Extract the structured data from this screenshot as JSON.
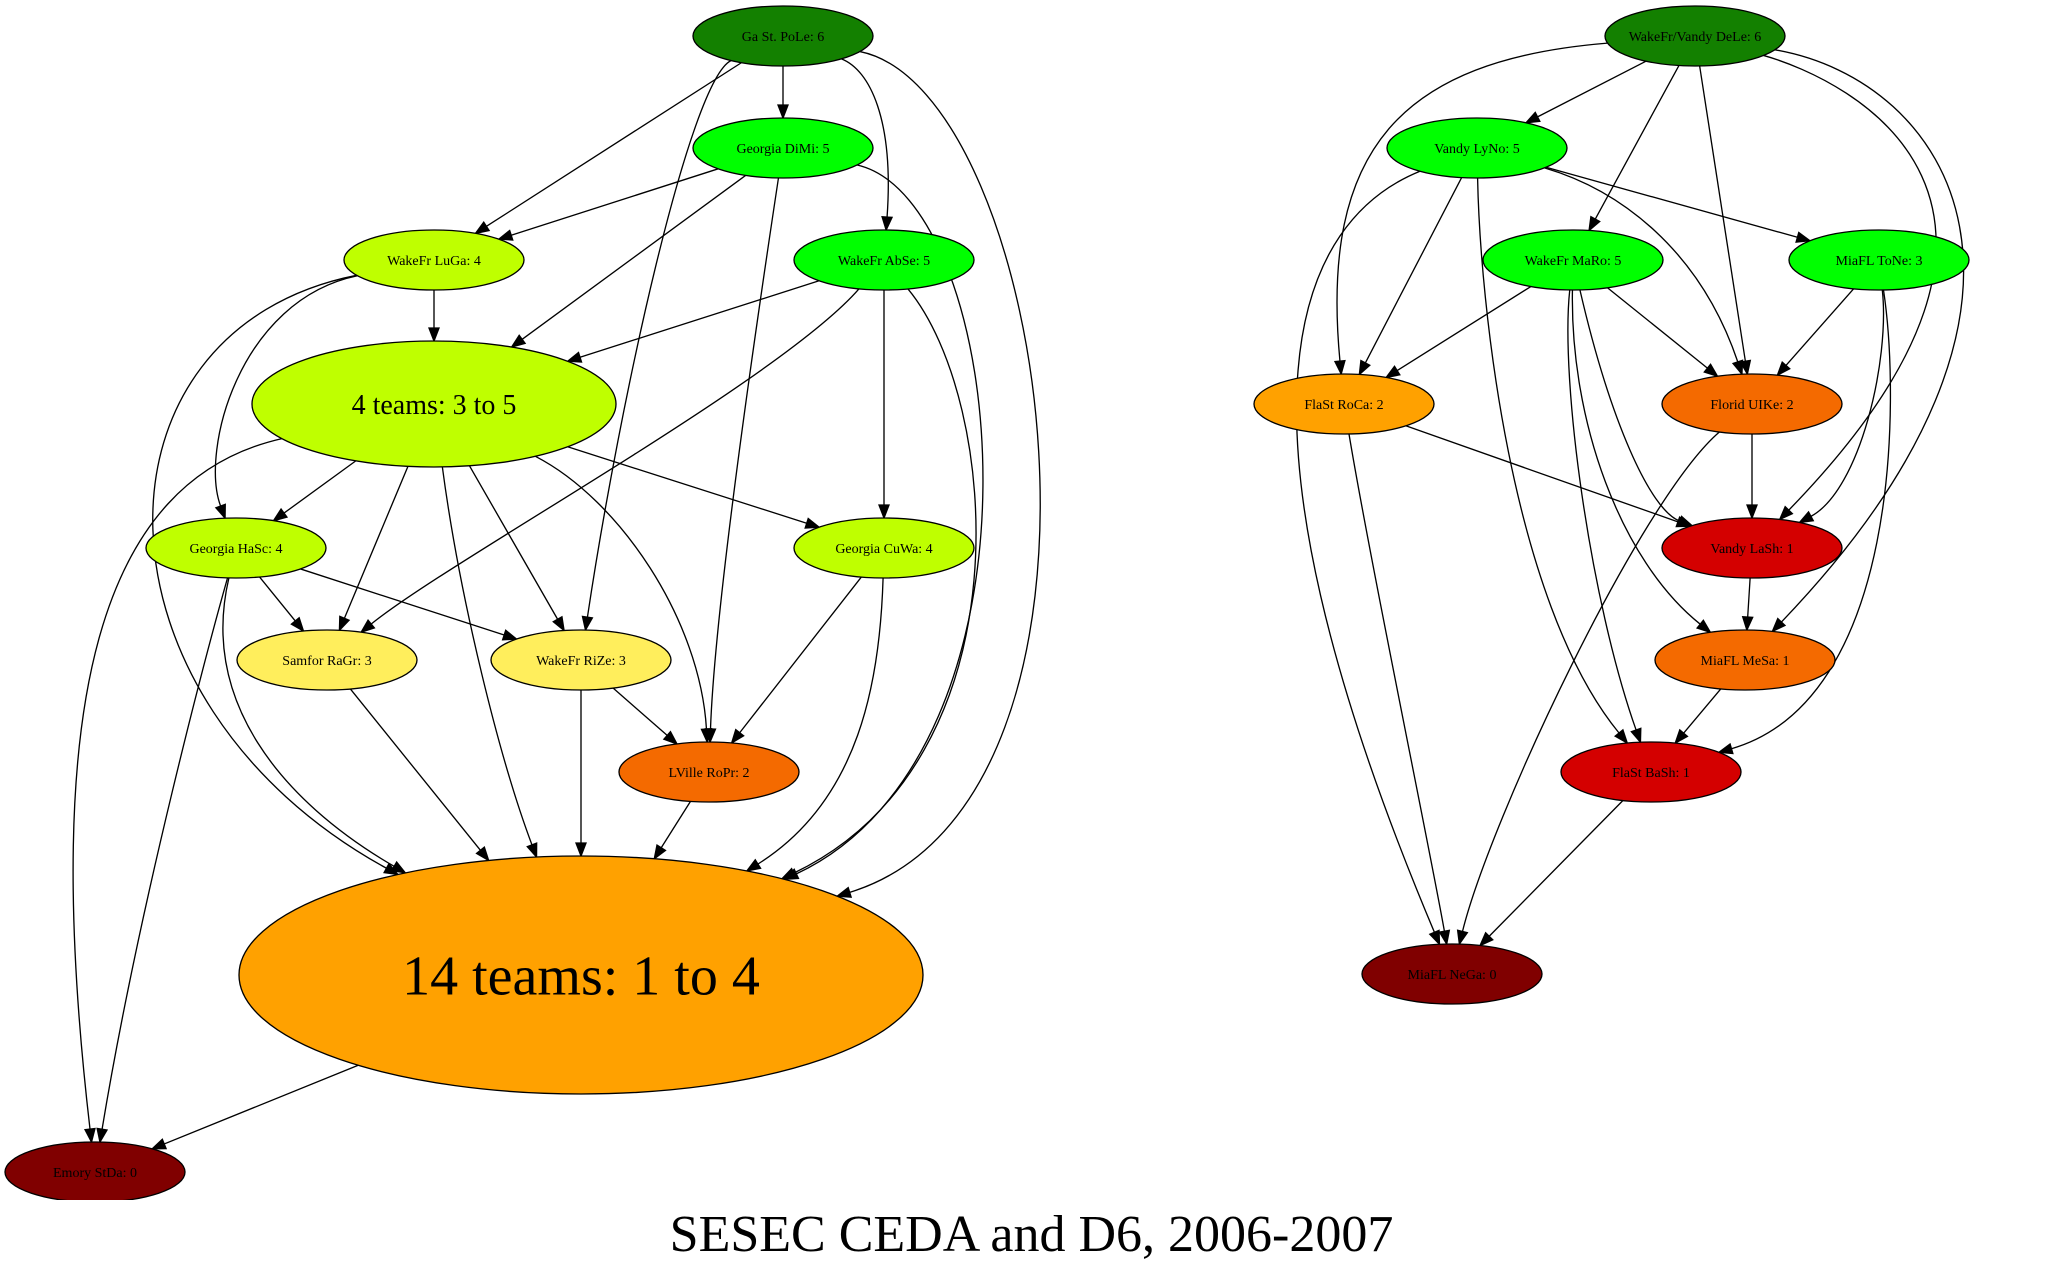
{
  "title": "SESEC CEDA and D6, 2006-2007",
  "colors": {
    "dark_green": "#138000",
    "green": "#00ff00",
    "yellow_green": "#bfff00",
    "yellow": "#ffee5c",
    "orange": "#ffa100",
    "dark_orange": "#f46a00",
    "red": "#d40000",
    "dark_red": "#800000"
  },
  "nodes": [
    {
      "id": "gastpole",
      "label": "Ga St. PoLe: 6",
      "color_key": "dark_green"
    },
    {
      "id": "georgiadimi",
      "label": "Georgia DiMi: 5",
      "color_key": "green"
    },
    {
      "id": "wakefrluga",
      "label": "WakeFr LuGa: 4",
      "color_key": "yellow_green"
    },
    {
      "id": "wakefrabse",
      "label": "WakeFr AbSe: 5",
      "color_key": "green"
    },
    {
      "id": "four_teams",
      "label": "4 teams: 3 to 5",
      "color_key": "yellow_green"
    },
    {
      "id": "georgiahasc",
      "label": "Georgia HaSc: 4",
      "color_key": "yellow_green"
    },
    {
      "id": "georgiacuwa",
      "label": "Georgia CuWa: 4",
      "color_key": "yellow_green"
    },
    {
      "id": "samforragr",
      "label": "Samfor RaGr: 3",
      "color_key": "yellow"
    },
    {
      "id": "wakefrrize",
      "label": "WakeFr RiZe: 3",
      "color_key": "yellow"
    },
    {
      "id": "lvilleropr",
      "label": "LVille RoPr: 2",
      "color_key": "dark_orange"
    },
    {
      "id": "fourteen_teams",
      "label": "14 teams: 1 to 4",
      "color_key": "orange"
    },
    {
      "id": "emorystda",
      "label": "Emory StDa: 0",
      "color_key": "dark_red"
    },
    {
      "id": "wakefrvandydele",
      "label": "WakeFr/Vandy DeLe: 6",
      "color_key": "dark_green"
    },
    {
      "id": "vandylyno",
      "label": "Vandy LyNo: 5",
      "color_key": "green"
    },
    {
      "id": "wakefrmaro",
      "label": "WakeFr MaRo: 5",
      "color_key": "green"
    },
    {
      "id": "miafltone",
      "label": "MiaFL ToNe: 3",
      "color_key": "green"
    },
    {
      "id": "flastroca",
      "label": "FlaSt RoCa: 2",
      "color_key": "orange"
    },
    {
      "id": "floriduike",
      "label": "Florid UIKe: 2",
      "color_key": "dark_orange"
    },
    {
      "id": "vandylash",
      "label": "Vandy LaSh: 1",
      "color_key": "red"
    },
    {
      "id": "miaflmesa",
      "label": "MiaFL MeSa: 1",
      "color_key": "dark_orange"
    },
    {
      "id": "flastbash",
      "label": "FlaSt BaSh: 1",
      "color_key": "red"
    },
    {
      "id": "miaflnega",
      "label": "MiaFL NeGa: 0",
      "color_key": "dark_red"
    }
  ],
  "edges": [
    {
      "from": "gastpole",
      "to": "georgiadimi"
    },
    {
      "from": "gastpole",
      "to": "wakefrluga"
    },
    {
      "from": "gastpole",
      "to": "wakefrabse"
    },
    {
      "from": "gastpole",
      "to": "wakefrrize"
    },
    {
      "from": "gastpole",
      "to": "fourteen_teams"
    },
    {
      "from": "georgiadimi",
      "to": "wakefrluga"
    },
    {
      "from": "georgiadimi",
      "to": "four_teams"
    },
    {
      "from": "georgiadimi",
      "to": "lvilleropr"
    },
    {
      "from": "georgiadimi",
      "to": "fourteen_teams"
    },
    {
      "from": "wakefrluga",
      "to": "four_teams"
    },
    {
      "from": "wakefrluga",
      "to": "georgiahasc"
    },
    {
      "from": "wakefrluga",
      "to": "fourteen_teams"
    },
    {
      "from": "wakefrabse",
      "to": "four_teams"
    },
    {
      "from": "wakefrabse",
      "to": "georgiacuwa"
    },
    {
      "from": "wakefrabse",
      "to": "samforragr"
    },
    {
      "from": "wakefrabse",
      "to": "fourteen_teams"
    },
    {
      "from": "four_teams",
      "to": "georgiahasc"
    },
    {
      "from": "four_teams",
      "to": "georgiacuwa"
    },
    {
      "from": "four_teams",
      "to": "samforragr"
    },
    {
      "from": "four_teams",
      "to": "wakefrrize"
    },
    {
      "from": "four_teams",
      "to": "lvilleropr"
    },
    {
      "from": "four_teams",
      "to": "fourteen_teams"
    },
    {
      "from": "four_teams",
      "to": "emorystda"
    },
    {
      "from": "georgiahasc",
      "to": "samforragr"
    },
    {
      "from": "georgiahasc",
      "to": "wakefrrize"
    },
    {
      "from": "georgiahasc",
      "to": "fourteen_teams"
    },
    {
      "from": "georgiahasc",
      "to": "emorystda"
    },
    {
      "from": "georgiacuwa",
      "to": "lvilleropr"
    },
    {
      "from": "georgiacuwa",
      "to": "fourteen_teams"
    },
    {
      "from": "samforragr",
      "to": "fourteen_teams"
    },
    {
      "from": "wakefrrize",
      "to": "lvilleropr"
    },
    {
      "from": "wakefrrize",
      "to": "fourteen_teams"
    },
    {
      "from": "lvilleropr",
      "to": "fourteen_teams"
    },
    {
      "from": "fourteen_teams",
      "to": "emorystda"
    },
    {
      "from": "wakefrvandydele",
      "to": "vandylyno"
    },
    {
      "from": "wakefrvandydele",
      "to": "wakefrmaro"
    },
    {
      "from": "wakefrvandydele",
      "to": "flastroca"
    },
    {
      "from": "wakefrvandydele",
      "to": "floriduike"
    },
    {
      "from": "wakefrvandydele",
      "to": "vandylash"
    },
    {
      "from": "wakefrvandydele",
      "to": "miaflmesa"
    },
    {
      "from": "vandylyno",
      "to": "miafltone"
    },
    {
      "from": "vandylyno",
      "to": "flastroca"
    },
    {
      "from": "vandylyno",
      "to": "floriduike"
    },
    {
      "from": "vandylyno",
      "to": "flastbash"
    },
    {
      "from": "vandylyno",
      "to": "miaflnega"
    },
    {
      "from": "wakefrmaro",
      "to": "flastroca"
    },
    {
      "from": "wakefrmaro",
      "to": "floriduike"
    },
    {
      "from": "wakefrmaro",
      "to": "vandylash"
    },
    {
      "from": "wakefrmaro",
      "to": "miaflmesa"
    },
    {
      "from": "wakefrmaro",
      "to": "flastbash"
    },
    {
      "from": "miafltone",
      "to": "floriduike"
    },
    {
      "from": "miafltone",
      "to": "vandylash"
    },
    {
      "from": "miafltone",
      "to": "flastbash"
    },
    {
      "from": "flastroca",
      "to": "vandylash"
    },
    {
      "from": "flastroca",
      "to": "miaflnega"
    },
    {
      "from": "floriduike",
      "to": "vandylash"
    },
    {
      "from": "floriduike",
      "to": "miaflnega"
    },
    {
      "from": "vandylash",
      "to": "miaflmesa"
    },
    {
      "from": "miaflmesa",
      "to": "flastbash"
    },
    {
      "from": "flastbash",
      "to": "miaflnega"
    }
  ]
}
